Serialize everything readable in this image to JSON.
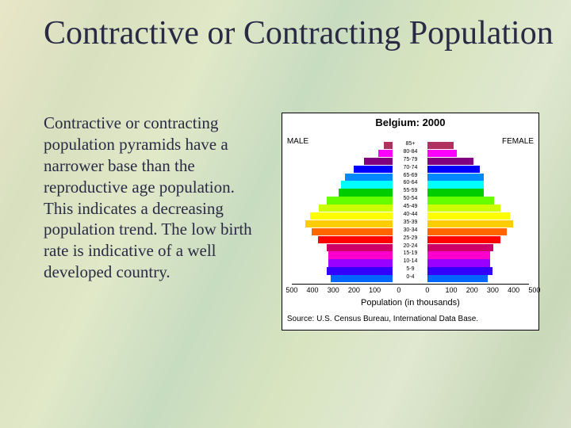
{
  "title": "Contractive or Contracting Population",
  "paragraph_lead": "Contractive or contracting",
  "paragraph_rest": " population pyramids have a narrower base than the reproductive age population.  This indicates a  decreasing population trend.  The low birth rate is indicative of a well developed country.",
  "chart": {
    "title": "Belgium: 2000",
    "male_label": "MALE",
    "female_label": "FEMALE",
    "x_label": "Population (in thousands)",
    "source": "Source: U.S. Census Bureau, International Data Base.",
    "x_max": 500,
    "x_ticks_left": [
      500,
      400,
      300,
      200,
      100,
      0
    ],
    "x_ticks_right": [
      0,
      100,
      200,
      300,
      400,
      500
    ],
    "bars": [
      {
        "age": "85+",
        "m": 45,
        "f": 125,
        "color": "#b03060"
      },
      {
        "age": "80-84",
        "m": 70,
        "f": 140,
        "color": "#ff00ff"
      },
      {
        "age": "75-79",
        "m": 140,
        "f": 220,
        "color": "#800080"
      },
      {
        "age": "70-74",
        "m": 190,
        "f": 250,
        "color": "#0000ff"
      },
      {
        "age": "65-69",
        "m": 230,
        "f": 270,
        "color": "#0088ff"
      },
      {
        "age": "60-64",
        "m": 250,
        "f": 270,
        "color": "#00ffff"
      },
      {
        "age": "55-59",
        "m": 260,
        "f": 270,
        "color": "#00cc00"
      },
      {
        "age": "50-54",
        "m": 320,
        "f": 320,
        "color": "#66ff00"
      },
      {
        "age": "45-49",
        "m": 355,
        "f": 350,
        "color": "#ccff00"
      },
      {
        "age": "40-44",
        "m": 400,
        "f": 395,
        "color": "#ffff00"
      },
      {
        "age": "35-39",
        "m": 420,
        "f": 410,
        "color": "#ffcc00"
      },
      {
        "age": "30-34",
        "m": 390,
        "f": 380,
        "color": "#ff6600"
      },
      {
        "age": "25-29",
        "m": 360,
        "f": 350,
        "color": "#ff0000"
      },
      {
        "age": "20-24",
        "m": 320,
        "f": 315,
        "color": "#cc0066"
      },
      {
        "age": "15-19",
        "m": 310,
        "f": 300,
        "color": "#ff00cc"
      },
      {
        "age": "10-14",
        "m": 310,
        "f": 300,
        "color": "#9900ff"
      },
      {
        "age": "5-9",
        "m": 320,
        "f": 310,
        "color": "#3300ff"
      },
      {
        "age": "0-4",
        "m": 300,
        "f": 290,
        "color": "#0066ff"
      }
    ]
  }
}
